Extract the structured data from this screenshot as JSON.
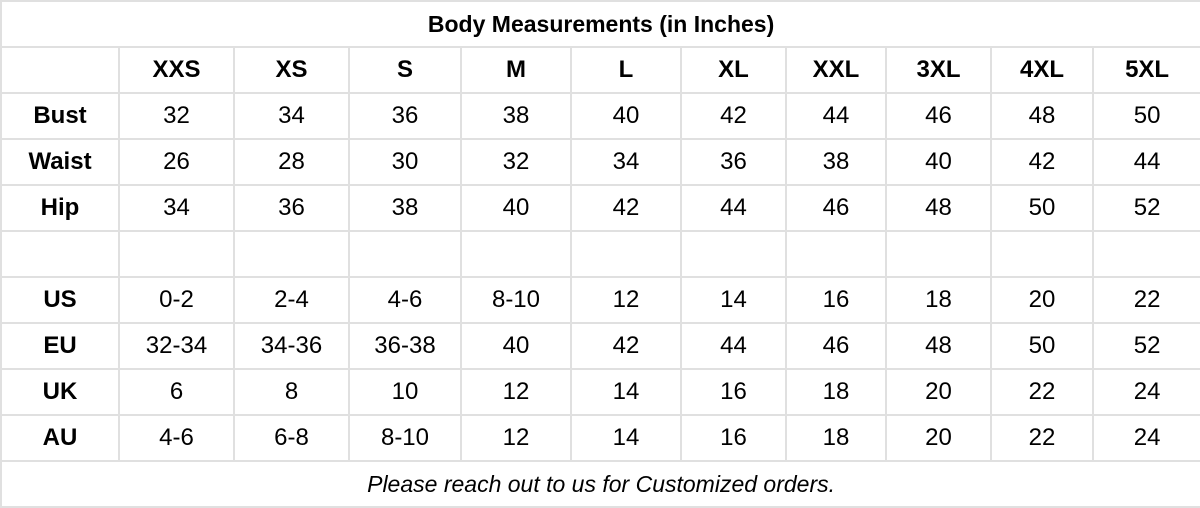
{
  "title": "Body Measurements (in Inches)",
  "sizes": [
    "XXS",
    "XS",
    "S",
    "M",
    "L",
    "XL",
    "XXL",
    "3XL",
    "4XL",
    "5XL"
  ],
  "measurements": [
    {
      "label": "Bust",
      "values": [
        "32",
        "34",
        "36",
        "38",
        "40",
        "42",
        "44",
        "46",
        "48",
        "50"
      ]
    },
    {
      "label": "Waist",
      "values": [
        "26",
        "28",
        "30",
        "32",
        "34",
        "36",
        "38",
        "40",
        "42",
        "44"
      ]
    },
    {
      "label": "Hip",
      "values": [
        "34",
        "36",
        "38",
        "40",
        "42",
        "44",
        "46",
        "48",
        "50",
        "52"
      ]
    }
  ],
  "conversions": [
    {
      "label": "US",
      "values": [
        "0-2",
        "2-4",
        "4-6",
        "8-10",
        "12",
        "14",
        "16",
        "18",
        "20",
        "22"
      ]
    },
    {
      "label": "EU",
      "values": [
        "32-34",
        "34-36",
        "36-38",
        "40",
        "42",
        "44",
        "46",
        "48",
        "50",
        "52"
      ]
    },
    {
      "label": "UK",
      "values": [
        "6",
        "8",
        "10",
        "12",
        "14",
        "16",
        "18",
        "20",
        "22",
        "24"
      ]
    },
    {
      "label": "AU",
      "values": [
        "4-6",
        "6-8",
        "8-10",
        "12",
        "14",
        "16",
        "18",
        "20",
        "22",
        "24"
      ]
    }
  ],
  "footer": "Please reach out to us for Customized orders."
}
